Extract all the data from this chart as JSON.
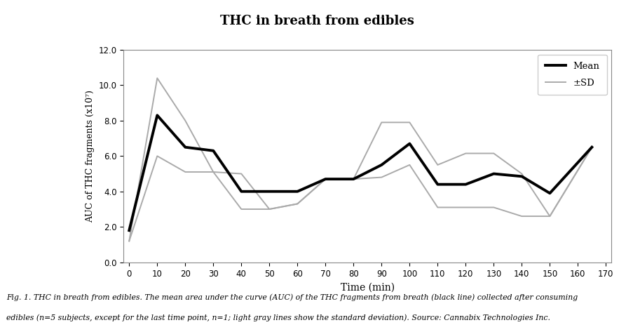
{
  "title": "THC in breath from edibles",
  "xlabel": "Time (min)",
  "ylabel": "AUC of THC fragments (x10⁷)",
  "time": [
    0,
    10,
    20,
    30,
    40,
    50,
    60,
    70,
    80,
    90,
    100,
    110,
    120,
    130,
    140,
    150,
    165
  ],
  "mean": [
    1.8,
    8.3,
    6.5,
    6.3,
    4.0,
    4.0,
    4.0,
    4.7,
    4.7,
    5.5,
    6.7,
    4.4,
    4.4,
    5.0,
    4.85,
    3.9,
    6.5
  ],
  "upper_sd": [
    1.2,
    10.4,
    8.0,
    5.1,
    5.0,
    3.0,
    3.3,
    4.7,
    4.7,
    7.9,
    7.9,
    5.5,
    6.15,
    6.15,
    5.0,
    2.6,
    6.5
  ],
  "lower_sd": [
    1.2,
    6.0,
    5.1,
    5.1,
    3.0,
    3.0,
    3.3,
    4.7,
    4.7,
    4.8,
    5.5,
    3.1,
    3.1,
    3.1,
    2.6,
    2.6,
    6.5
  ],
  "mean_color": "#000000",
  "sd_color": "#aaaaaa",
  "mean_linewidth": 2.8,
  "sd_linewidth": 1.4,
  "ylim": [
    0.0,
    12.0
  ],
  "yticks": [
    0.0,
    2.0,
    4.0,
    6.0,
    8.0,
    10.0,
    12.0
  ],
  "xticks": [
    0,
    10,
    20,
    30,
    40,
    50,
    60,
    70,
    80,
    90,
    100,
    110,
    120,
    130,
    140,
    150,
    160,
    170
  ],
  "xlim": [
    -2,
    172
  ],
  "caption_line1": "Fig. 1. THC in breath from edibles. The mean area under the curve (AUC) of the THC fragments from breath (black line) collected after consuming",
  "caption_line2": "edibles (n=5 subjects, except for the last time point, n=1; light gray lines show the standard deviation). Source: Cannabix Technologies Inc.",
  "background_color": "#ffffff",
  "plot_bg_color": "#ffffff",
  "legend_mean_label": "Mean",
  "legend_sd_label": "±SD",
  "box_color": "#888888"
}
